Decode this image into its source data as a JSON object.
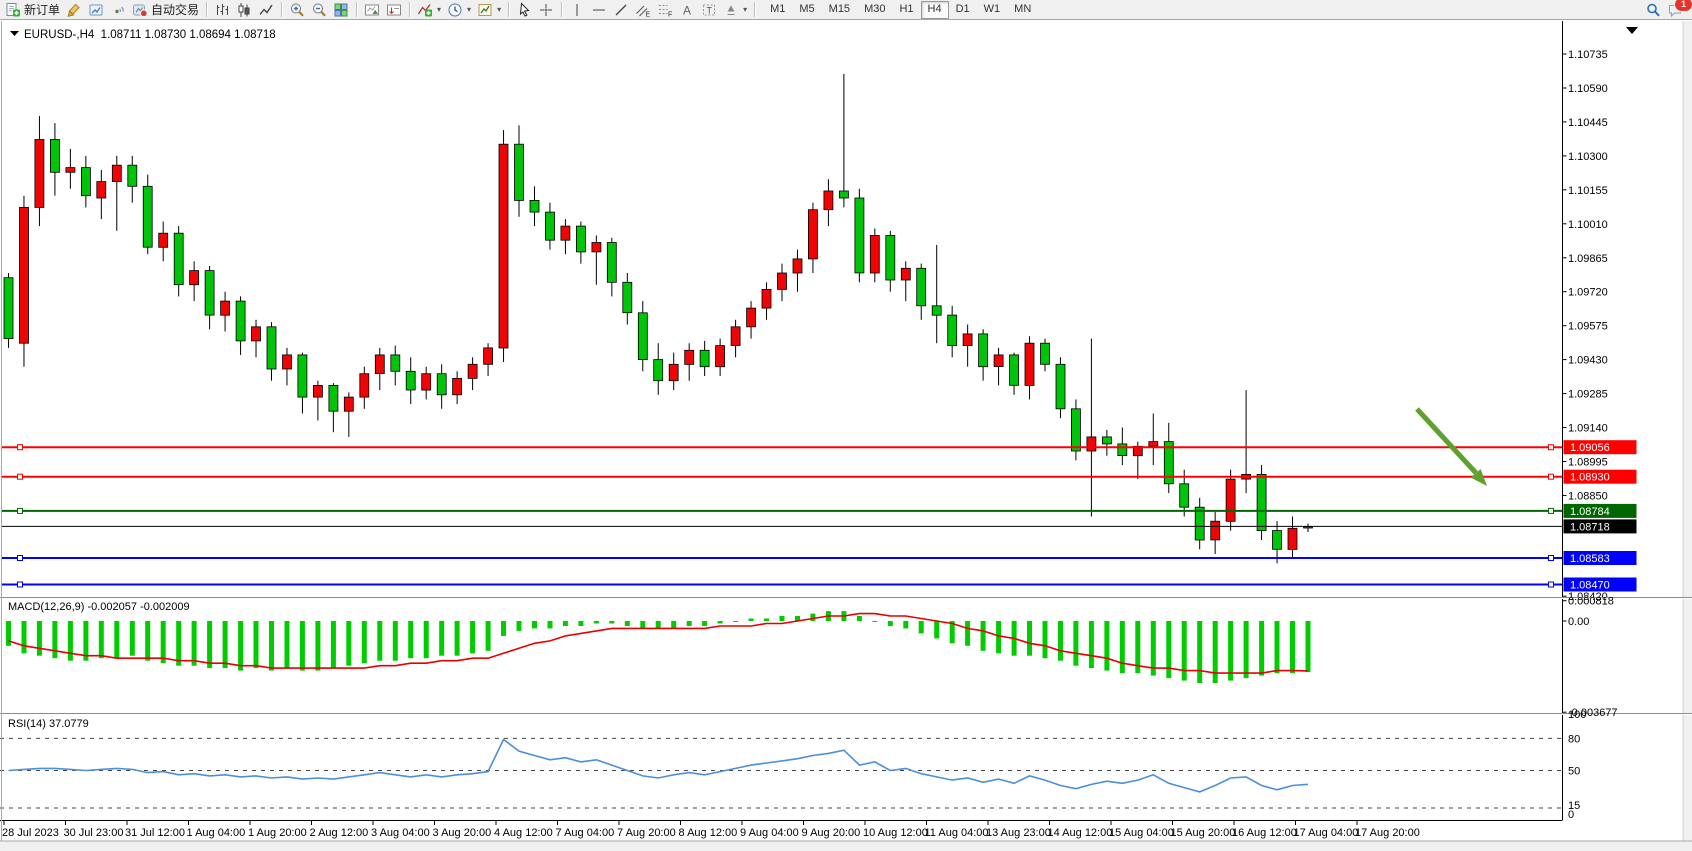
{
  "toolbar": {
    "groups": [
      {
        "items": [
          {
            "icon": "new-order-icon",
            "label": "新订单"
          },
          {
            "icon": "styler-icon"
          },
          {
            "icon": "market-watch-icon"
          },
          {
            "icon": "signal-icon"
          },
          {
            "icon": "autotrading-icon",
            "label": "自动交易"
          }
        ]
      },
      {
        "items": [
          {
            "icon": "bar-chart-icon"
          },
          {
            "icon": "candlestick-icon"
          },
          {
            "icon": "line-chart-icon"
          }
        ]
      },
      {
        "items": [
          {
            "icon": "zoom-in-icon"
          },
          {
            "icon": "zoom-out-icon"
          },
          {
            "icon": "tile-windows-icon"
          }
        ]
      },
      {
        "items": [
          {
            "icon": "auto-scroll-icon"
          },
          {
            "icon": "chart-shift-icon"
          }
        ]
      },
      {
        "items": [
          {
            "icon": "indicators-icon",
            "arrow": true
          },
          {
            "icon": "periods-icon",
            "arrow": true
          },
          {
            "icon": "templates-icon",
            "arrow": true
          }
        ]
      },
      {
        "items": [
          {
            "icon": "cursor-icon"
          },
          {
            "icon": "crosshair-icon"
          }
        ]
      },
      {
        "items": [
          {
            "icon": "vline-icon"
          },
          {
            "icon": "hline-icon"
          },
          {
            "icon": "trendline-icon"
          },
          {
            "icon": "channel-icon"
          },
          {
            "icon": "fibonacci-icon"
          },
          {
            "icon": "text-icon"
          },
          {
            "icon": "label-icon"
          },
          {
            "icon": "arrows-icon",
            "arrow": true
          }
        ]
      }
    ],
    "timeframes": [
      "M1",
      "M5",
      "M15",
      "M30",
      "H1",
      "H4",
      "D1",
      "W1",
      "MN"
    ],
    "active_timeframe": "H4",
    "right_icons": [
      {
        "icon": "search-icon"
      },
      {
        "icon": "chat-icon",
        "badge": "1"
      }
    ]
  },
  "chart": {
    "title": {
      "symbol": "EURUSD-,H4",
      "open": "1.08711",
      "high": "1.08730",
      "low": "1.08694",
      "close": "1.08718"
    },
    "price_axis_labels": [
      "1.10735",
      "1.10590",
      "1.10445",
      "1.10300",
      "1.10155",
      "1.10010",
      "1.09865",
      "1.09720",
      "1.09575",
      "1.09430",
      "1.09285",
      "1.09140",
      "1.08995",
      "1.08850",
      "1.08420"
    ],
    "hlines": [
      {
        "price": 1.09056,
        "label": "1.09056",
        "color": "#ff0000",
        "width": 2,
        "handles": true
      },
      {
        "price": 1.0893,
        "label": "1.08930",
        "color": "#ff0000",
        "width": 2,
        "handles": true
      },
      {
        "price": 1.08784,
        "label": "1.08784",
        "color": "#006600",
        "width": 2,
        "handles": true
      },
      {
        "price": 1.08718,
        "label": "1.08718",
        "color": "#000000",
        "width": 1,
        "handles": false
      },
      {
        "price": 1.08583,
        "label": "1.08583",
        "color": "#0000ff",
        "width": 2,
        "handles": true
      },
      {
        "price": 1.0847,
        "label": "1.08470",
        "color": "#0000ff",
        "width": 2,
        "handles": true
      }
    ],
    "arrow_annotation": {
      "direction": "down-right",
      "color": "#5fa02e"
    }
  },
  "chart_data": {
    "type": "candlestick",
    "symbol": "EURUSD",
    "period": "H4",
    "price_range": [
      1.0842,
      1.10735
    ],
    "candles": [
      [
        1.0978,
        1.098,
        1.0948,
        1.0952
      ],
      [
        1.095,
        1.1013,
        1.094,
        1.1008
      ],
      [
        1.1008,
        1.1047,
        1.1,
        1.1037
      ],
      [
        1.1037,
        1.1044,
        1.1013,
        1.1023
      ],
      [
        1.1023,
        1.1033,
        1.1016,
        1.1025
      ],
      [
        1.1025,
        1.103,
        1.1008,
        1.1013
      ],
      [
        1.1012,
        1.1024,
        1.1003,
        1.1019
      ],
      [
        1.1019,
        1.103,
        1.0998,
        1.1026
      ],
      [
        1.1026,
        1.103,
        1.101,
        1.1017
      ],
      [
        1.1017,
        1.1022,
        1.0988,
        1.0991
      ],
      [
        1.0991,
        1.1002,
        1.0985,
        1.0997
      ],
      [
        1.0997,
        1.1,
        1.097,
        1.0975
      ],
      [
        1.0975,
        1.0985,
        1.0968,
        1.0981
      ],
      [
        1.0981,
        1.0983,
        1.0956,
        1.0962
      ],
      [
        1.0962,
        1.0972,
        1.0955,
        1.0968
      ],
      [
        1.0968,
        1.097,
        1.0945,
        1.0951
      ],
      [
        1.0951,
        1.096,
        1.0944,
        1.0957
      ],
      [
        1.0957,
        1.0959,
        1.0934,
        1.0939
      ],
      [
        1.0939,
        1.0948,
        1.0932,
        1.0945
      ],
      [
        1.0945,
        1.0946,
        1.092,
        1.0927
      ],
      [
        1.0927,
        1.0934,
        1.0917,
        1.0932
      ],
      [
        1.0932,
        1.0933,
        1.0912,
        1.0921
      ],
      [
        1.0921,
        1.0929,
        1.091,
        1.0927
      ],
      [
        1.0927,
        1.094,
        1.0922,
        1.0937
      ],
      [
        1.0937,
        1.0948,
        1.093,
        1.0945
      ],
      [
        1.0945,
        1.0949,
        1.0932,
        1.0938
      ],
      [
        1.0938,
        1.0944,
        1.0924,
        1.093
      ],
      [
        1.093,
        1.094,
        1.0926,
        1.0937
      ],
      [
        1.0937,
        1.0941,
        1.0922,
        1.0928
      ],
      [
        1.0928,
        1.0938,
        1.0924,
        1.0935
      ],
      [
        1.0935,
        1.0944,
        1.093,
        1.0941
      ],
      [
        1.0941,
        1.095,
        1.0936,
        1.0948
      ],
      [
        1.0948,
        1.1041,
        1.0942,
        1.1035
      ],
      [
        1.1035,
        1.1043,
        1.1004,
        1.1011
      ],
      [
        1.1011,
        1.1017,
        1.1,
        1.1006
      ],
      [
        1.1006,
        1.101,
        1.099,
        1.0994
      ],
      [
        1.0994,
        1.1003,
        1.0988,
        1.1
      ],
      [
        1.1,
        1.1002,
        1.0984,
        1.0989
      ],
      [
        1.0989,
        1.0996,
        1.0975,
        1.0993
      ],
      [
        1.0993,
        1.0995,
        1.097,
        1.0976
      ],
      [
        1.0976,
        1.098,
        1.0958,
        1.0963
      ],
      [
        1.0963,
        1.0968,
        1.0938,
        1.0943
      ],
      [
        1.0943,
        1.095,
        1.0928,
        1.0934
      ],
      [
        1.0934,
        1.0946,
        1.093,
        1.0941
      ],
      [
        1.0941,
        1.095,
        1.0934,
        1.0947
      ],
      [
        1.0947,
        1.0951,
        1.0936,
        1.094
      ],
      [
        1.094,
        1.0952,
        1.0936,
        1.0949
      ],
      [
        1.0949,
        1.096,
        1.0944,
        1.0957
      ],
      [
        1.0957,
        1.0968,
        1.0952,
        1.0965
      ],
      [
        1.0965,
        1.0976,
        1.096,
        1.0973
      ],
      [
        1.0973,
        1.0984,
        1.0968,
        1.098
      ],
      [
        1.098,
        1.099,
        1.0972,
        1.0986
      ],
      [
        1.0986,
        1.101,
        1.098,
        1.1007
      ],
      [
        1.1007,
        1.102,
        1.1,
        1.1015
      ],
      [
        1.1015,
        1.1065,
        1.1008,
        1.1012
      ],
      [
        1.1012,
        1.1016,
        1.0976,
        1.098
      ],
      [
        1.098,
        1.0999,
        1.0976,
        1.0996
      ],
      [
        1.0996,
        1.0998,
        1.0972,
        1.0977
      ],
      [
        1.0977,
        1.0985,
        1.0968,
        1.0982
      ],
      [
        1.0982,
        1.0984,
        1.096,
        1.0966
      ],
      [
        1.0966,
        1.0992,
        1.095,
        1.0962
      ],
      [
        1.0962,
        1.0966,
        1.0944,
        1.0949
      ],
      [
        1.0949,
        1.0958,
        1.094,
        1.0954
      ],
      [
        1.0954,
        1.0956,
        1.0934,
        1.094
      ],
      [
        1.094,
        1.0948,
        1.0932,
        1.0945
      ],
      [
        1.0945,
        1.0946,
        1.0928,
        1.0932
      ],
      [
        1.0932,
        1.0953,
        1.0926,
        1.095
      ],
      [
        1.095,
        1.0952,
        1.0938,
        1.0941
      ],
      [
        1.0941,
        1.0944,
        1.0918,
        1.0922
      ],
      [
        1.0922,
        1.0926,
        1.09,
        1.0904
      ],
      [
        1.0904,
        1.0952,
        1.0876,
        1.091
      ],
      [
        1.091,
        1.0913,
        1.0902,
        1.0907
      ],
      [
        1.0907,
        1.0914,
        1.0898,
        1.0902
      ],
      [
        1.0902,
        1.0908,
        1.0892,
        1.0906
      ],
      [
        1.0906,
        1.092,
        1.0898,
        1.0908
      ],
      [
        1.0908,
        1.0916,
        1.0886,
        1.089
      ],
      [
        1.089,
        1.0896,
        1.0876,
        1.088
      ],
      [
        1.088,
        1.0884,
        1.0862,
        1.0866
      ],
      [
        1.0866,
        1.0878,
        1.086,
        1.0874
      ],
      [
        1.0874,
        1.0896,
        1.087,
        1.0892
      ],
      [
        1.0892,
        1.093,
        1.0886,
        1.0894
      ],
      [
        1.0894,
        1.0898,
        1.0866,
        1.087
      ],
      [
        1.087,
        1.0874,
        1.0856,
        1.0862
      ],
      [
        1.0862,
        1.0876,
        1.0858,
        1.0871
      ],
      [
        1.08711,
        1.0873,
        1.08694,
        1.08718
      ]
    ],
    "time_labels": [
      "28 Jul 2023",
      "30 Jul 23:00",
      "31 Jul 12:00",
      "1 Aug 04:00",
      "1 Aug 20:00",
      "2 Aug 12:00",
      "3 Aug 04:00",
      "3 Aug 20:00",
      "4 Aug 12:00",
      "7 Aug 04:00",
      "7 Aug 20:00",
      "8 Aug 12:00",
      "9 Aug 04:00",
      "9 Aug 20:00",
      "10 Aug 12:00",
      "11 Aug 04:00",
      "13 Aug 23:00",
      "14 Aug 12:00",
      "15 Aug 04:00",
      "15 Aug 20:00",
      "16 Aug 12:00",
      "17 Aug 04:00",
      "17 Aug 20:00"
    ]
  },
  "macd": {
    "label": "MACD(12,26,9)",
    "value_main": "-0.002057",
    "value_signal": "-0.002009",
    "axis_labels": [
      "0.000818",
      "0.00",
      "-0.003677"
    ],
    "axis_values": [
      0.000818,
      0.0,
      -0.003677
    ],
    "histogram": [
      -0.001,
      -0.0013,
      -0.0014,
      -0.0015,
      -0.0016,
      -0.0016,
      -0.0015,
      -0.0015,
      -0.0014,
      -0.0016,
      -0.0017,
      -0.0018,
      -0.0018,
      -0.0019,
      -0.0019,
      -0.002,
      -0.0019,
      -0.002,
      -0.0019,
      -0.002,
      -0.002,
      -0.0019,
      -0.0018,
      -0.0017,
      -0.0016,
      -0.0016,
      -0.0015,
      -0.0015,
      -0.0014,
      -0.0014,
      -0.0013,
      -0.0012,
      -0.0006,
      -0.0004,
      -0.0003,
      -0.0003,
      -0.0002,
      -0.0002,
      -0.0001,
      -0.0001,
      -0.0002,
      -0.0003,
      -0.0003,
      -0.0003,
      -0.0002,
      -0.0002,
      -0.0001,
      0.0,
      0.0001,
      0.0001,
      0.0002,
      0.0002,
      0.0003,
      0.0004,
      0.0004,
      0.0002,
      0.0,
      -0.0002,
      -0.0003,
      -0.0005,
      -0.0007,
      -0.0009,
      -0.001,
      -0.0012,
      -0.0013,
      -0.0014,
      -0.0014,
      -0.0015,
      -0.0016,
      -0.0018,
      -0.0019,
      -0.002,
      -0.0021,
      -0.0021,
      -0.0022,
      -0.0023,
      -0.0024,
      -0.0025,
      -0.0025,
      -0.0024,
      -0.0023,
      -0.0022,
      -0.0021,
      -0.0021,
      -0.00206
    ],
    "signal": [
      -0.0008,
      -0.001,
      -0.0011,
      -0.0012,
      -0.0013,
      -0.0014,
      -0.0014,
      -0.0015,
      -0.0015,
      -0.0015,
      -0.0015,
      -0.0016,
      -0.0016,
      -0.0017,
      -0.0017,
      -0.0018,
      -0.0018,
      -0.0019,
      -0.0019,
      -0.0019,
      -0.0019,
      -0.0019,
      -0.0019,
      -0.0019,
      -0.0018,
      -0.0018,
      -0.0017,
      -0.0017,
      -0.0016,
      -0.0016,
      -0.0015,
      -0.0015,
      -0.0013,
      -0.0011,
      -0.0009,
      -0.0008,
      -0.0006,
      -0.0005,
      -0.0004,
      -0.0003,
      -0.0003,
      -0.0003,
      -0.0003,
      -0.0003,
      -0.0003,
      -0.0003,
      -0.0002,
      -0.0002,
      -0.0002,
      -0.0001,
      -0.0001,
      0.0,
      0.0001,
      0.0002,
      0.0002,
      0.0003,
      0.0003,
      0.0002,
      0.0002,
      0.0001,
      0.0,
      -0.0001,
      -0.0003,
      -0.0004,
      -0.0006,
      -0.0007,
      -0.0009,
      -0.001,
      -0.0012,
      -0.0013,
      -0.0014,
      -0.0015,
      -0.0017,
      -0.0018,
      -0.0019,
      -0.0019,
      -0.002,
      -0.002,
      -0.0021,
      -0.0021,
      -0.0021,
      -0.0021,
      -0.002,
      -0.002,
      -0.00201
    ]
  },
  "rsi": {
    "label": "RSI(14)",
    "value": "37.0779",
    "axis_labels": [
      "100",
      "80",
      "50",
      "15",
      "0"
    ],
    "levels": [
      80,
      50,
      15
    ],
    "values": [
      50,
      51,
      52,
      52,
      51,
      50,
      51,
      52,
      51,
      48,
      49,
      46,
      47,
      45,
      46,
      44,
      45,
      43,
      44,
      42,
      43,
      42,
      44,
      46,
      48,
      46,
      44,
      46,
      44,
      46,
      47,
      49,
      79,
      68,
      64,
      60,
      62,
      58,
      60,
      55,
      50,
      45,
      43,
      46,
      48,
      46,
      49,
      52,
      55,
      57,
      59,
      61,
      64,
      66,
      69,
      55,
      58,
      50,
      52,
      47,
      44,
      41,
      43,
      39,
      42,
      38,
      45,
      41,
      36,
      33,
      37,
      40,
      38,
      41,
      46,
      38,
      34,
      30,
      36,
      43,
      44,
      36,
      32,
      36,
      37.08
    ]
  },
  "colors": {
    "bull": "#ef0505",
    "bear": "#00c40a",
    "wick": "#000000",
    "macd_hist": "#00cc00",
    "macd_signal": "#e60000",
    "rsi_line": "#4a90d9",
    "arrow": "#5fa02e",
    "axis_text": "#000000"
  }
}
